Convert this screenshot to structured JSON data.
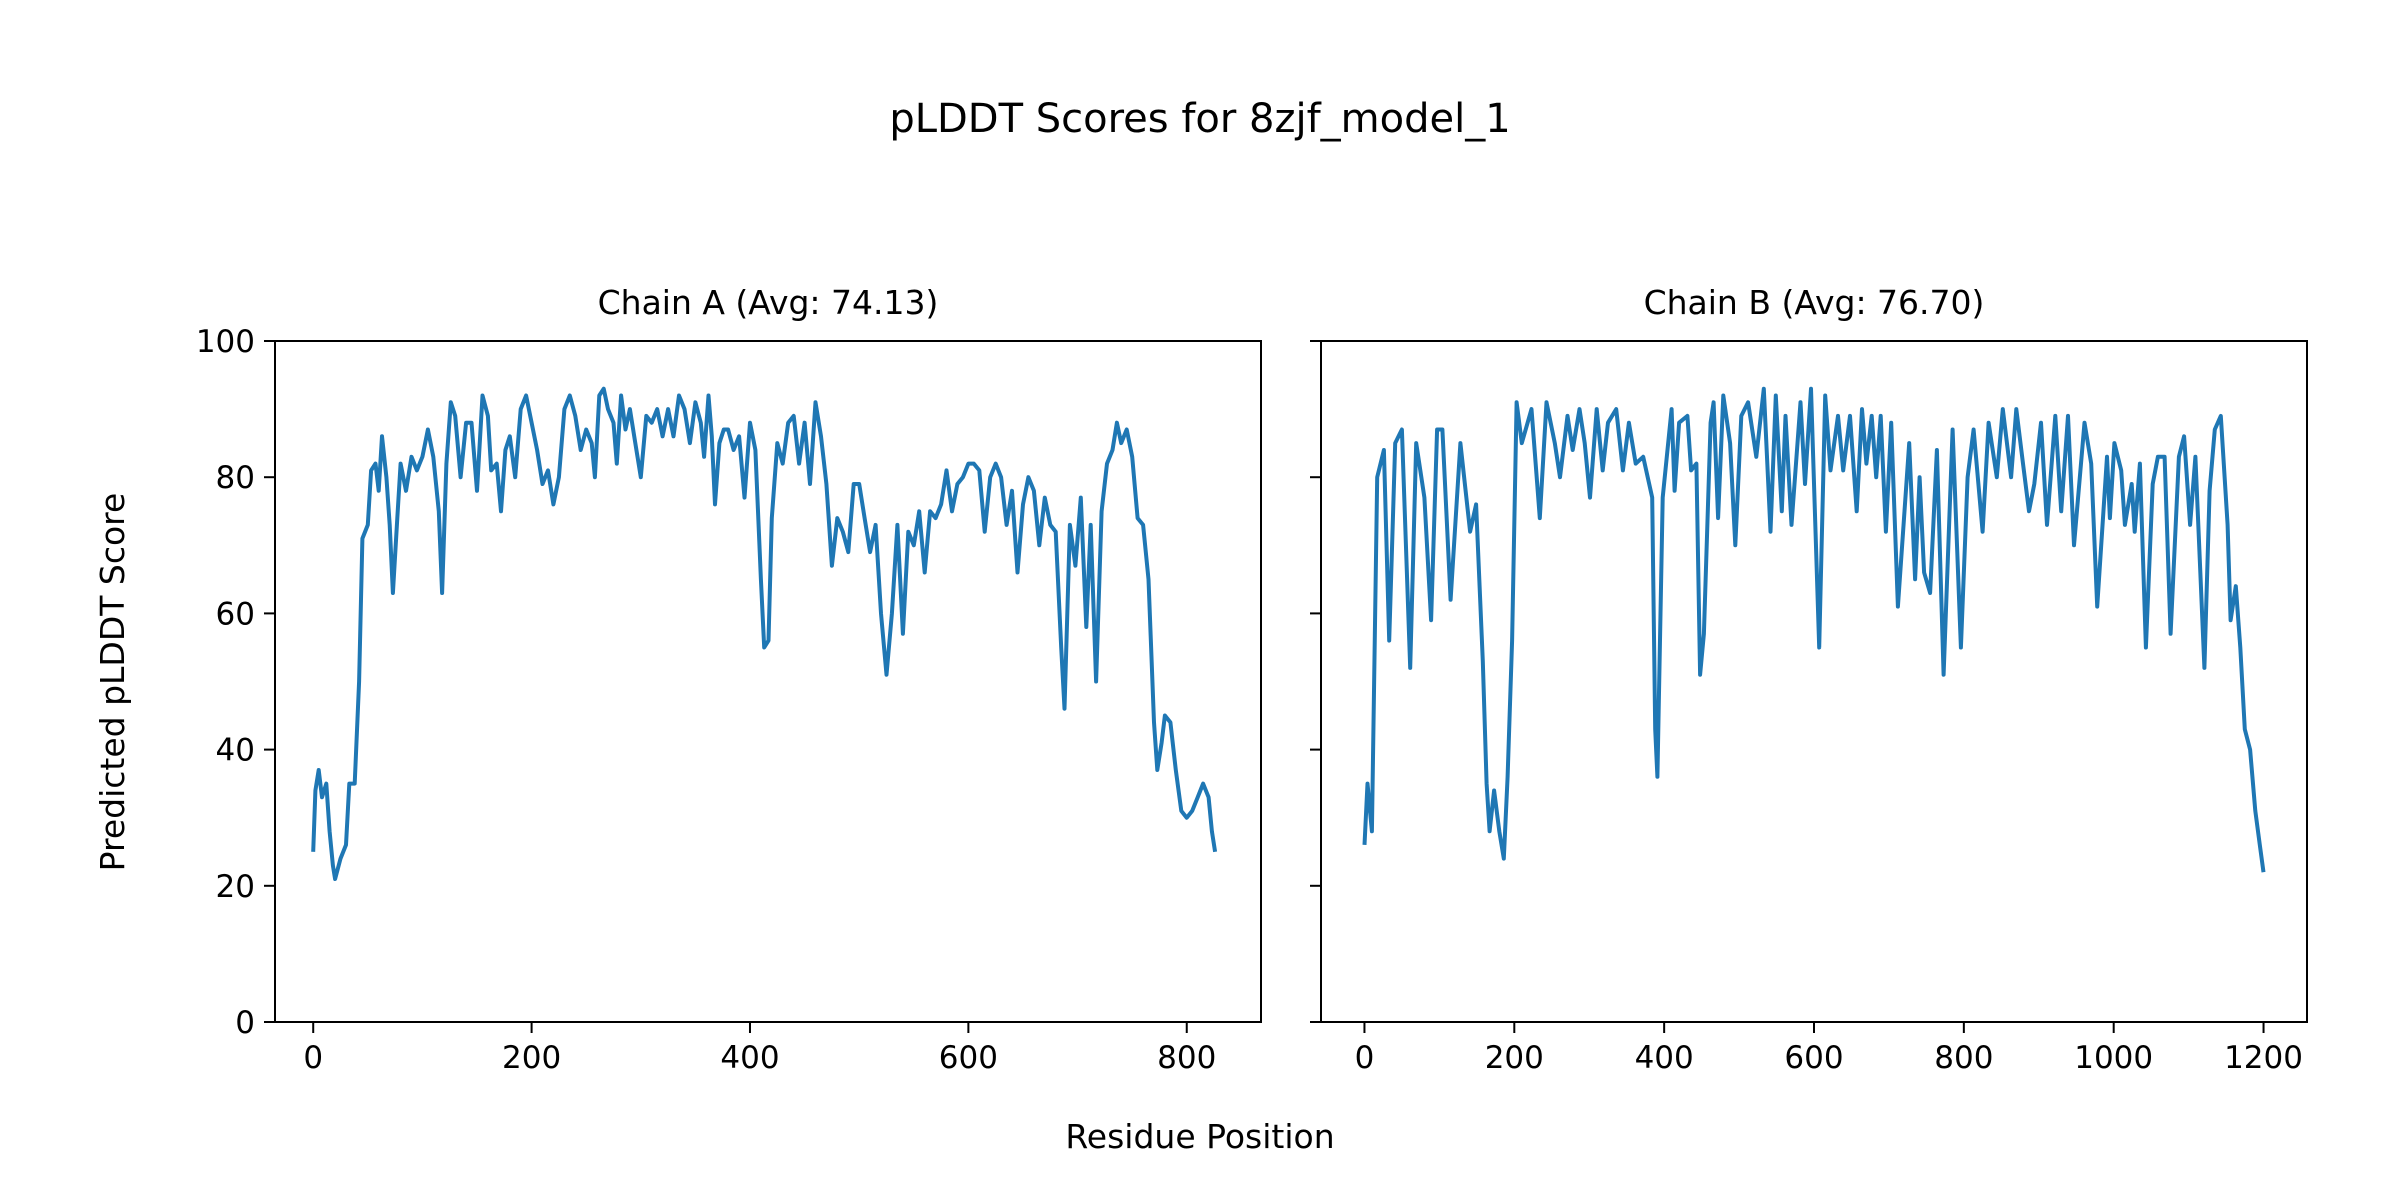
{
  "chart_data": [
    {
      "type": "line",
      "title": "Chain A (Avg: 74.13)",
      "xlabel": "Residue Position",
      "ylabel": "Predicted pLDDT Score",
      "xlim": [
        -35,
        868
      ],
      "ylim": [
        0,
        100
      ],
      "xticks": [
        0,
        200,
        400,
        600,
        800
      ],
      "yticks": [
        0,
        20,
        40,
        60,
        80,
        100
      ],
      "color": "#1f77b4",
      "x": [
        0,
        2,
        5,
        8,
        12,
        15,
        18,
        20,
        25,
        30,
        33,
        38,
        42,
        45,
        50,
        53,
        57,
        60,
        63,
        67,
        70,
        73,
        77,
        80,
        85,
        90,
        95,
        100,
        105,
        110,
        115,
        118,
        122,
        126,
        130,
        135,
        140,
        145,
        150,
        155,
        160,
        163,
        168,
        172,
        176,
        180,
        185,
        190,
        195,
        200,
        205,
        210,
        215,
        220,
        225,
        230,
        235,
        240,
        245,
        250,
        255,
        258,
        262,
        266,
        270,
        275,
        278,
        282,
        286,
        290,
        295,
        300,
        305,
        310,
        315,
        320,
        325,
        330,
        335,
        340,
        345,
        350,
        355,
        358,
        362,
        365,
        368,
        372,
        376,
        380,
        385,
        390,
        395,
        400,
        405,
        410,
        413,
        417,
        420,
        425,
        430,
        435,
        440,
        445,
        450,
        455,
        460,
        465,
        470,
        475,
        480,
        485,
        490,
        495,
        500,
        505,
        510,
        515,
        520,
        525,
        530,
        535,
        540,
        545,
        550,
        555,
        560,
        565,
        570,
        575,
        580,
        585,
        590,
        595,
        600,
        605,
        610,
        615,
        620,
        625,
        630,
        635,
        640,
        645,
        650,
        655,
        660,
        665,
        670,
        675,
        680,
        685,
        688,
        693,
        698,
        703,
        708,
        712,
        717,
        722,
        727,
        732,
        736,
        740,
        745,
        750,
        755,
        760,
        765,
        770,
        773,
        777,
        780,
        785,
        790,
        795,
        800,
        805,
        810,
        815,
        820,
        823,
        826
      ],
      "y": [
        25,
        34,
        37,
        33,
        35,
        28,
        23,
        21,
        24,
        26,
        35,
        35,
        50,
        71,
        73,
        81,
        82,
        78,
        86,
        80,
        73,
        63,
        74,
        82,
        78,
        83,
        81,
        83,
        87,
        83,
        75,
        63,
        82,
        91,
        89,
        80,
        88,
        88,
        78,
        92,
        89,
        81,
        82,
        75,
        84,
        86,
        80,
        90,
        92,
        88,
        84,
        79,
        81,
        76,
        80,
        90,
        92,
        89,
        84,
        87,
        85,
        80,
        92,
        93,
        90,
        88,
        82,
        92,
        87,
        90,
        85,
        80,
        89,
        88,
        90,
        86,
        90,
        86,
        92,
        90,
        85,
        91,
        88,
        83,
        92,
        86,
        76,
        85,
        87,
        87,
        84,
        86,
        77,
        88,
        84,
        65,
        55,
        56,
        74,
        85,
        82,
        88,
        89,
        82,
        88,
        79,
        91,
        86,
        79,
        67,
        74,
        72,
        69,
        79,
        79,
        74,
        69,
        73,
        60,
        51,
        60,
        73,
        57,
        72,
        70,
        75,
        66,
        75,
        74,
        76,
        81,
        75,
        79,
        80,
        82,
        82,
        81,
        72,
        80,
        82,
        80,
        73,
        78,
        66,
        76,
        80,
        78,
        70,
        77,
        73,
        72,
        55,
        46,
        73,
        67,
        77,
        58,
        73,
        50,
        75,
        82,
        84,
        88,
        85,
        87,
        83,
        74,
        73,
        65,
        44,
        37,
        41,
        45,
        44,
        37,
        31,
        30,
        31,
        33,
        35,
        33,
        28,
        25
      ]
    },
    {
      "type": "line",
      "title": "Chain B (Avg: 76.70)",
      "xlabel": "Residue Position",
      "ylabel": "",
      "xlim": [
        -58,
        1258
      ],
      "ylim": [
        0,
        100
      ],
      "xticks": [
        0,
        200,
        400,
        600,
        800,
        1000,
        1200
      ],
      "yticks": [
        0,
        20,
        40,
        60,
        80,
        100
      ],
      "color": "#1f77b4",
      "x": [
        0,
        4,
        10,
        17,
        26,
        33,
        41,
        50,
        61,
        69,
        80,
        89,
        97,
        104,
        115,
        128,
        141,
        149,
        158,
        163,
        167,
        173,
        180,
        186,
        191,
        197,
        203,
        210,
        223,
        234,
        243,
        254,
        261,
        271,
        278,
        287,
        294,
        301,
        310,
        318,
        325,
        336,
        345,
        353,
        362,
        372,
        384,
        388,
        391,
        398,
        410,
        414,
        420,
        431,
        436,
        443,
        448,
        453,
        462,
        466,
        472,
        479,
        488,
        495,
        503,
        512,
        523,
        533,
        542,
        549,
        557,
        562,
        570,
        582,
        588,
        596,
        607,
        615,
        622,
        632,
        639,
        648,
        657,
        664,
        670,
        677,
        683,
        689,
        696,
        703,
        712,
        727,
        735,
        741,
        747,
        755,
        764,
        773,
        785,
        796,
        805,
        813,
        825,
        833,
        844,
        852,
        863,
        870,
        879,
        887,
        894,
        903,
        911,
        922,
        930,
        939,
        947,
        961,
        970,
        978,
        991,
        995,
        1001,
        1010,
        1015,
        1024,
        1028,
        1035,
        1043,
        1052,
        1059,
        1068,
        1076,
        1087,
        1094,
        1102,
        1109,
        1121,
        1128,
        1135,
        1143,
        1152,
        1156,
        1163,
        1169,
        1175,
        1182,
        1189,
        1195,
        1200
      ],
      "y": [
        26,
        35,
        28,
        80,
        84,
        56,
        85,
        87,
        52,
        85,
        77,
        59,
        87,
        87,
        62,
        85,
        72,
        76,
        53,
        35,
        28,
        34,
        28,
        24,
        36,
        56,
        91,
        85,
        90,
        74,
        91,
        85,
        80,
        89,
        84,
        90,
        85,
        77,
        90,
        81,
        88,
        90,
        81,
        88,
        82,
        83,
        77,
        43,
        36,
        77,
        90,
        78,
        88,
        89,
        81,
        82,
        51,
        57,
        88,
        91,
        74,
        92,
        85,
        70,
        89,
        91,
        83,
        93,
        72,
        92,
        75,
        89,
        73,
        91,
        79,
        93,
        55,
        92,
        81,
        89,
        81,
        89,
        75,
        90,
        82,
        89,
        80,
        89,
        72,
        88,
        61,
        85,
        65,
        80,
        66,
        63,
        84,
        51,
        87,
        55,
        80,
        87,
        72,
        88,
        80,
        90,
        80,
        90,
        82,
        75,
        79,
        88,
        73,
        89,
        75,
        89,
        70,
        88,
        82,
        61,
        83,
        74,
        85,
        81,
        73,
        79,
        72,
        82,
        55,
        79,
        83,
        83,
        57,
        83,
        86,
        73,
        83,
        52,
        78,
        87,
        89,
        73,
        59,
        64,
        55,
        43,
        40,
        31,
        26,
        22
      ]
    }
  ],
  "figure": {
    "suptitle": "pLDDT Scores for 8zjf_model_1",
    "shared_xlabel": "Residue Position",
    "shared_ylabel": "Predicted pLDDT Score"
  }
}
